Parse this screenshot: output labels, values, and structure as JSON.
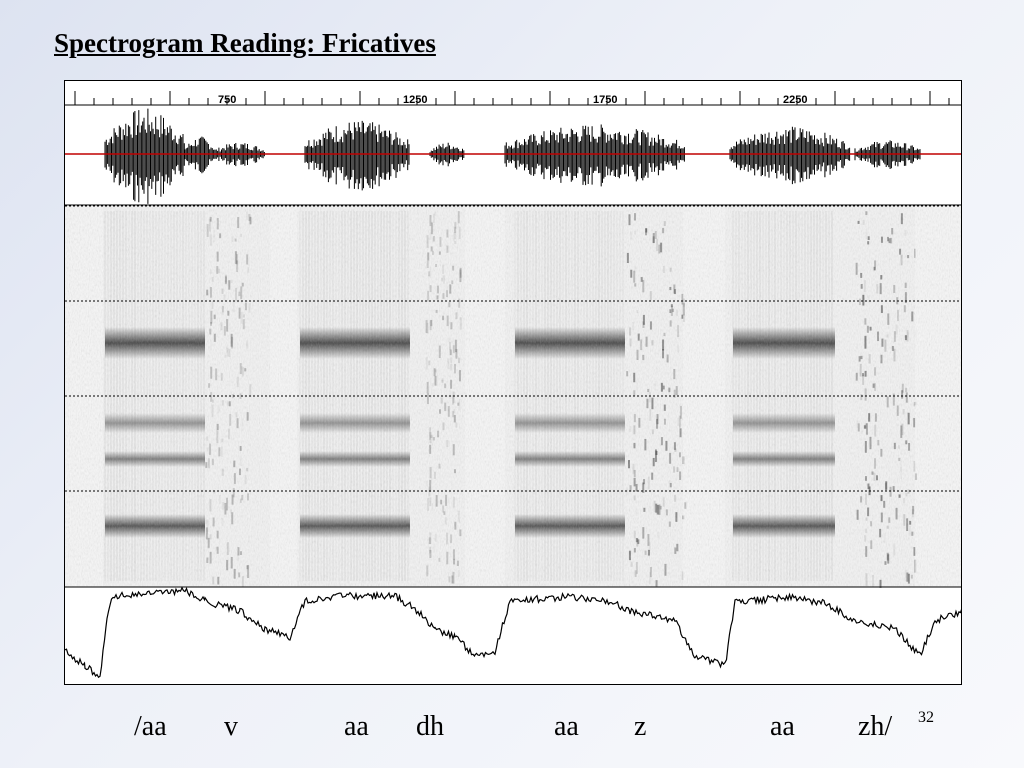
{
  "slide": {
    "title": "Spectrogram Reading: Fricatives",
    "number": "32"
  },
  "figure": {
    "time_ticks": [
      "750",
      "1250",
      "1750",
      "2250"
    ],
    "phone_labels": [
      "/aa",
      "v",
      "aa",
      "dh",
      "aa",
      "z",
      "aa",
      "zh/"
    ]
  },
  "colors": {
    "waveform_axis": "#c00000",
    "ink": "#000000",
    "background": "#eef1f8"
  }
}
